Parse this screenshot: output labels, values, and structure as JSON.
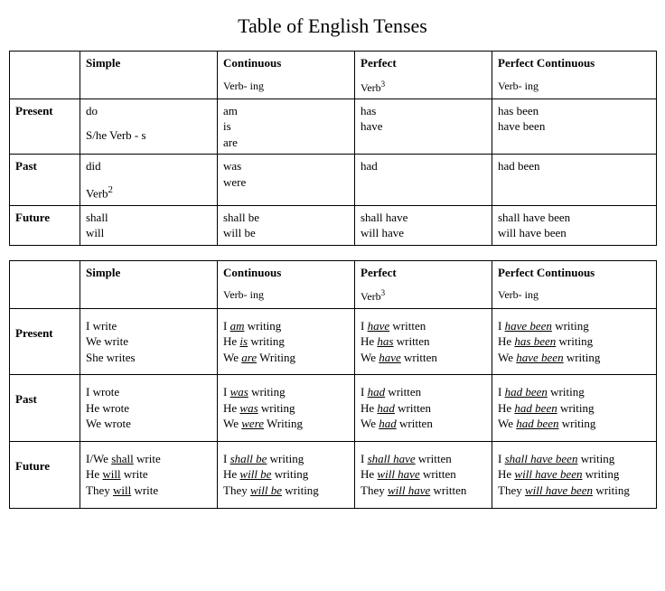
{
  "title": "Table of English Tenses",
  "columns": {
    "simple": "Simple",
    "continuous": "Continuous",
    "perfect": "Perfect",
    "perfect_continuous": "Perfect Continuous"
  },
  "subheaders": {
    "continuous": "Verb- ing",
    "perfect": "Verb",
    "perfect_sup": "3",
    "perfect_continuous": "Verb- ing"
  },
  "rows": {
    "present": "Present",
    "past": "Past",
    "future": "Future"
  },
  "aux": {
    "present": {
      "simple_l1": "do",
      "simple_l2": "S/he Verb - s",
      "continuous_l1": "am",
      "continuous_l2": "is",
      "continuous_l3": "are",
      "perfect_l1": "has",
      "perfect_l2": "have",
      "pc_l1": "has been",
      "pc_l2": "have been"
    },
    "past": {
      "simple_l1": "did",
      "simple_l2": "Verb",
      "simple_sup": "2",
      "continuous_l1": "was",
      "continuous_l2": "were",
      "perfect_l1": "had",
      "pc_l1": "had been"
    },
    "future": {
      "simple_l1": "shall",
      "simple_l2": "will",
      "continuous_l1": "shall be",
      "continuous_l2": "will be",
      "perfect_l1": "shall have",
      "perfect_l2": "will have",
      "pc_l1": "shall have been",
      "pc_l2": "will have been"
    }
  },
  "ex": {
    "present": {
      "simple": [
        "I write",
        "We write",
        "She writes"
      ],
      "continuous": [
        {
          "pre": "I ",
          "aux": "am",
          "post": " writing"
        },
        {
          "pre": "He ",
          "aux": "is",
          "post": " writing"
        },
        {
          "pre": "We ",
          "aux": "are",
          "post": " Writing"
        }
      ],
      "perfect": [
        {
          "pre": "I ",
          "aux": "have",
          "post": " written"
        },
        {
          "pre": "He ",
          "aux": "has",
          "post": " written"
        },
        {
          "pre": "We ",
          "aux": "have",
          "post": " written"
        }
      ],
      "pc": [
        {
          "pre": "I ",
          "aux": "have been",
          "post": " writing"
        },
        {
          "pre": "He ",
          "aux": "has been",
          "post": " writing"
        },
        {
          "pre": "We ",
          "aux": "have been",
          "post": " writing"
        }
      ]
    },
    "past": {
      "simple": [
        "I wrote",
        "He wrote",
        "We wrote"
      ],
      "continuous": [
        {
          "pre": "I ",
          "aux": "was",
          "post": " writing"
        },
        {
          "pre": "He ",
          "aux": "was",
          "post": " writing"
        },
        {
          "pre": "We ",
          "aux": "were",
          "post": " Writing"
        }
      ],
      "perfect": [
        {
          "pre": "I ",
          "aux": "had",
          "post": " written"
        },
        {
          "pre": "He ",
          "aux": "had",
          "post": " written"
        },
        {
          "pre": "We ",
          "aux": "had",
          "post": " written"
        }
      ],
      "pc": [
        {
          "pre": "I ",
          "aux": "had been",
          "post": " writing"
        },
        {
          "pre": "He ",
          "aux": "had been",
          "post": " writing"
        },
        {
          "pre": "We ",
          "aux": "had been",
          "post": " writing"
        }
      ]
    },
    "future": {
      "simple": [
        {
          "pre": "I/We ",
          "aux": "shall",
          "post": " write"
        },
        {
          "pre": "He ",
          "aux": "will",
          "post": " write"
        },
        {
          "pre": "They ",
          "aux": "will",
          "post": " write"
        }
      ],
      "continuous": [
        {
          "pre": "I ",
          "aux": "shall be",
          "post": " writing"
        },
        {
          "pre": "He ",
          "aux": "will be",
          "post": " writing"
        },
        {
          "pre": "They ",
          "aux": "will be",
          "post": " writing"
        }
      ],
      "perfect": [
        {
          "pre": "I ",
          "aux": "shall have",
          "post": " written"
        },
        {
          "pre": "He ",
          "aux": "will have",
          "post": " written"
        },
        {
          "pre": "They ",
          "aux": "will have",
          "post": " written"
        }
      ],
      "pc": [
        {
          "pre": "I ",
          "aux": "shall have been",
          "post": " writing"
        },
        {
          "pre": "He ",
          "aux": "will have been",
          "post": " writing"
        },
        {
          "pre": "They ",
          "aux": "will have been",
          "post": " writing"
        }
      ]
    }
  }
}
